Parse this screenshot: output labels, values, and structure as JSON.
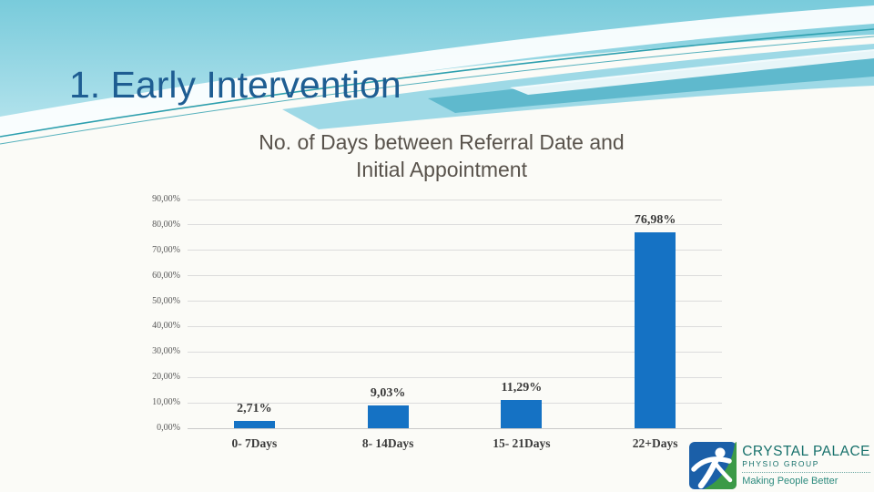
{
  "slide": {
    "title": "1. Early Intervention"
  },
  "chart_data": {
    "type": "bar",
    "title": "No. of Days between Referral Date and Initial Appointment",
    "title_lines": [
      "No. of Days between Referral Date and",
      "Initial Appointment"
    ],
    "categories": [
      "0- 7Days",
      "8- 14Days",
      "15- 21Days",
      "22+Days"
    ],
    "values": [
      2.71,
      9.03,
      11.29,
      76.98
    ],
    "value_labels": [
      "2,71%",
      "9,03%",
      "11,29%",
      "76,98%"
    ],
    "y_ticks": [
      "0,00%",
      "10,00%",
      "20,00%",
      "30,00%",
      "40,00%",
      "50,00%",
      "60,00%",
      "70,00%",
      "80,00%",
      "90,00%"
    ],
    "ylim": [
      0,
      90
    ],
    "xlabel": "",
    "ylabel": "",
    "grid": true,
    "legend": "none",
    "bar_color": "#1572c4"
  },
  "logo": {
    "name": "CRYSTAL PALACE",
    "subtitle": "PHYSIO GROUP",
    "tagline": "Making People Better"
  },
  "colors": {
    "title_blue": "#1e5d92",
    "chart_title_gray": "#59534c",
    "bar_blue": "#1572c4",
    "banner_teal_line": "#2d9fae",
    "logo_blue": "#1b5fa8",
    "logo_green": "#3b9a47",
    "logo_teal_text": "#16706b"
  }
}
